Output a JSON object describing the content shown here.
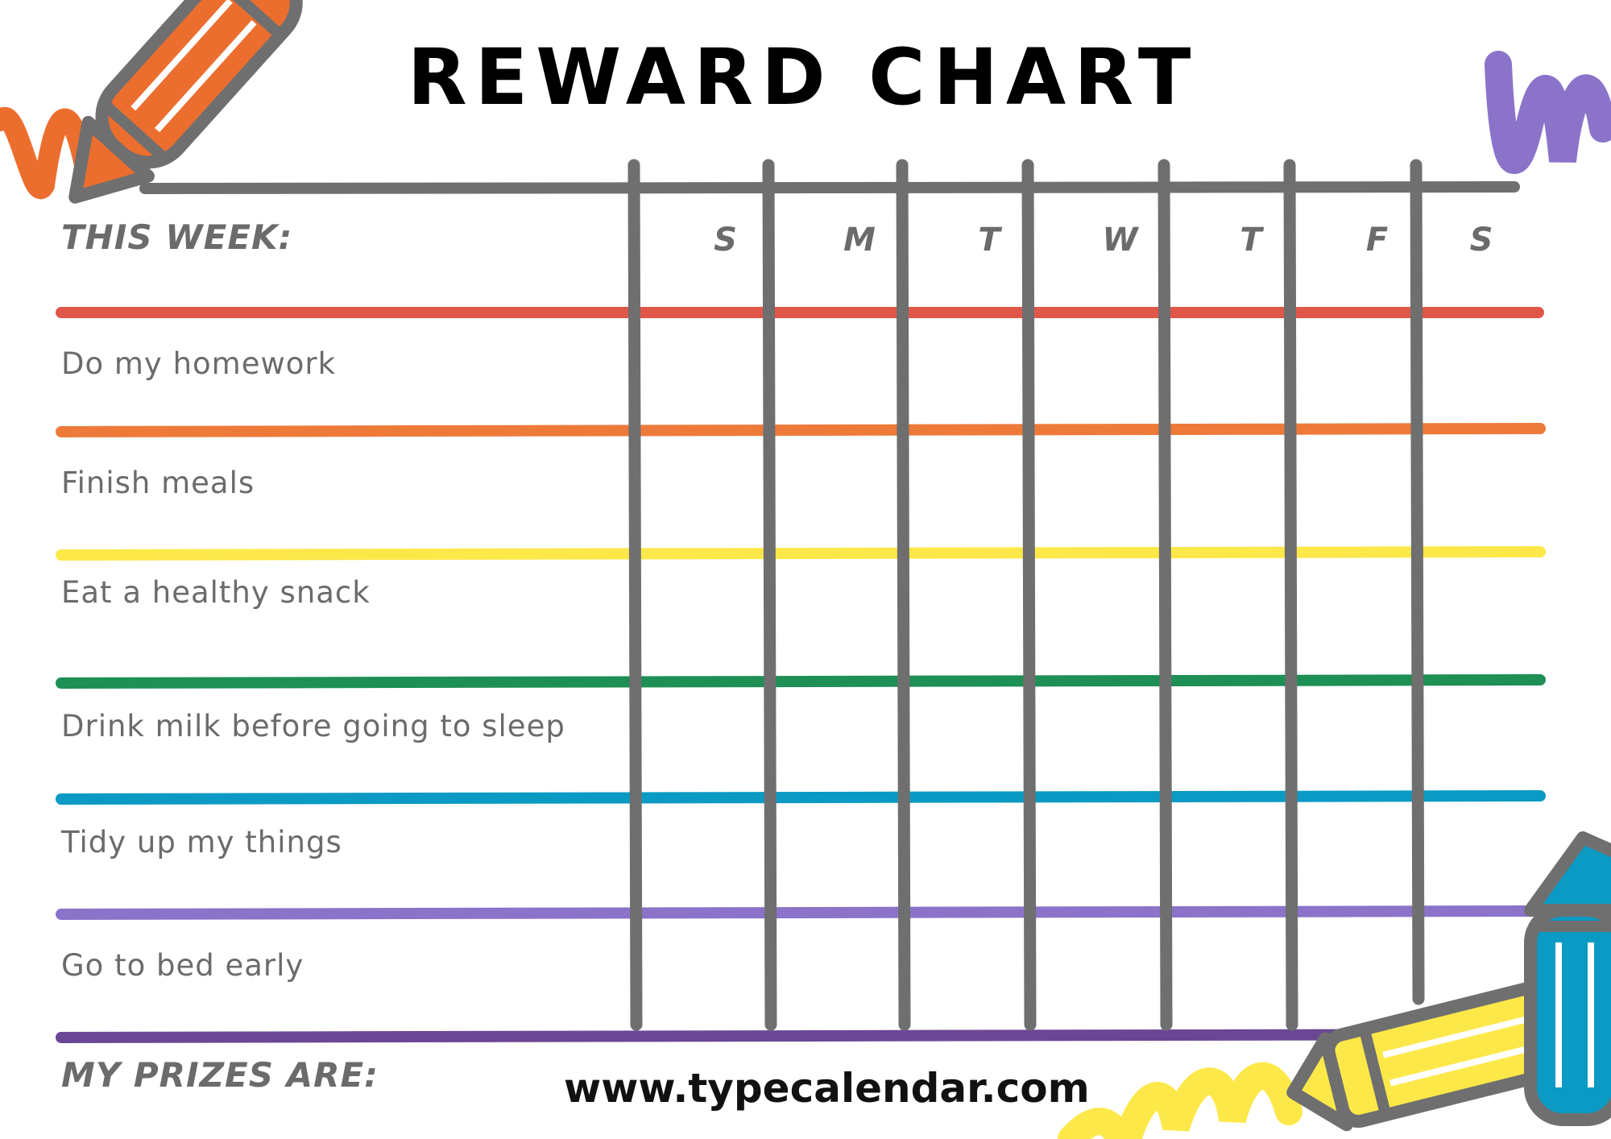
{
  "title": "REWARD CHART",
  "this_week_label": "THIS WEEK:",
  "days": [
    "S",
    "M",
    "T",
    "W",
    "T",
    "F",
    "S"
  ],
  "tasks": [
    {
      "label": "Do my homework",
      "line_color": "#ee7a3a"
    },
    {
      "label": "Finish meals",
      "line_color": "#fde84a"
    },
    {
      "label": "Eat a healthy snack",
      "line_color": "#1e8f55"
    },
    {
      "label": "Drink milk before going to sleep",
      "line_color": "#0a9ac4"
    },
    {
      "label": "Tidy up my things",
      "line_color": "#8b73c9"
    },
    {
      "label": "Go to bed early",
      "line_color": "#6a4795"
    }
  ],
  "header_line_color": "#e0574a",
  "grid_color": "#6f6f6f",
  "prizes_label": "MY PRIZES ARE:",
  "footer": "www.typecalendar.com",
  "decorations": {
    "top_left": "orange-pencil",
    "top_right": "purple-scribble",
    "bottom_right": "yellow-pencil-and-blue-crayon"
  }
}
